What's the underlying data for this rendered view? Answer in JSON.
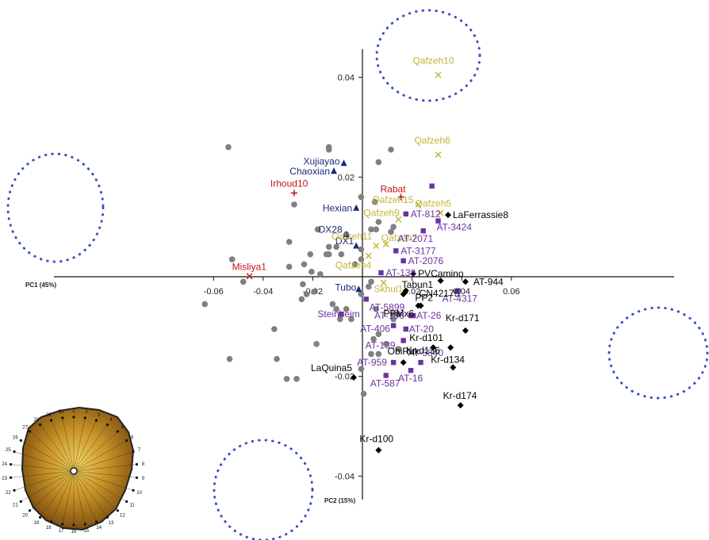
{
  "chart_data": {
    "type": "scatter",
    "xlabel": "PC1 (45%)",
    "ylabel": "PC2 (15%)",
    "xlim": [
      -0.067,
      0.068
    ],
    "ylim": [
      -0.047,
      0.055
    ],
    "x_ticks": [
      -0.06,
      -0.04,
      -0.02,
      0.02,
      0.04,
      0.06
    ],
    "x_tick_labels": [
      "-0.06",
      "-0.04",
      "-0.02",
      "0.02",
      "0.04",
      "0.06"
    ],
    "y_ticks": [
      0.04,
      0.02,
      -0.02,
      -0.04
    ],
    "y_tick_labels": [
      "0.04",
      "0.02",
      "-0.02",
      "-0.04"
    ],
    "grid": false,
    "colors": {
      "grey": "#808080",
      "red": "#c0161a",
      "navy": "#1c2a7a",
      "olive": "#c2b43a",
      "purple": "#6b32a0",
      "black": "#000000",
      "dots": "#3a4fc4"
    },
    "series": [
      {
        "group": "unlabeled-comparative",
        "marker": "circle",
        "color": "#808080",
        "points": [
          {
            "x": -0.054,
            "y": 0.026
          },
          {
            "x": -0.0135,
            "y": 0.0255
          },
          {
            "x": -0.0135,
            "y": 0.026
          },
          {
            "x": 0.0115,
            "y": 0.0255
          },
          {
            "x": 0.0065,
            "y": 0.023
          },
          {
            "x": -0.0275,
            "y": 0.0145
          },
          {
            "x": -0.0005,
            "y": 0.016
          },
          {
            "x": 0.005,
            "y": 0.015
          },
          {
            "x": 0.0065,
            "y": 0.011
          },
          {
            "x": 0.0055,
            "y": 0.0095
          },
          {
            "x": 0.0035,
            "y": 0.0095
          },
          {
            "x": 0.0125,
            "y": 0.01
          },
          {
            "x": -0.018,
            "y": 0.0095
          },
          {
            "x": -0.0065,
            "y": 0.0085
          },
          {
            "x": 0.0115,
            "y": 0.009
          },
          {
            "x": -0.0295,
            "y": 0.007
          },
          {
            "x": -0.0135,
            "y": 0.006
          },
          {
            "x": -0.0105,
            "y": 0.006
          },
          {
            "x": -0.0005,
            "y": 0.0055
          },
          {
            "x": -0.021,
            "y": 0.0045
          },
          {
            "x": -0.0145,
            "y": 0.0045
          },
          {
            "x": -0.0135,
            "y": 0.0045
          },
          {
            "x": -0.0085,
            "y": 0.0045
          },
          {
            "x": -0.0005,
            "y": 0.0035
          },
          {
            "x": -0.0525,
            "y": 0.0035
          },
          {
            "x": -0.003,
            "y": 0.0025
          },
          {
            "x": -0.0235,
            "y": 0.0025
          },
          {
            "x": -0.0295,
            "y": 0.002
          },
          {
            "x": -0.0205,
            "y": 0.001
          },
          {
            "x": -0.017,
            "y": 0.0005
          },
          {
            "x": -0.048,
            "y": -0.001
          },
          {
            "x": -0.024,
            "y": -0.0015
          },
          {
            "x": 0.0035,
            "y": -0.001
          },
          {
            "x": 0.0025,
            "y": -0.002
          },
          {
            "x": -0.0225,
            "y": -0.0035
          },
          {
            "x": -0.0195,
            "y": -0.003
          },
          {
            "x": -0.0005,
            "y": -0.0035
          },
          {
            "x": -0.0635,
            "y": -0.0055
          },
          {
            "x": -0.0245,
            "y": -0.0045
          },
          {
            "x": -0.012,
            "y": -0.0055
          },
          {
            "x": -0.0105,
            "y": -0.0065
          },
          {
            "x": -0.0065,
            "y": -0.0065
          },
          {
            "x": 0.0055,
            "y": -0.0065
          },
          {
            "x": 0.0125,
            "y": -0.0075
          },
          {
            "x": 0.0145,
            "y": -0.0075
          },
          {
            "x": -0.0045,
            "y": -0.0085
          },
          {
            "x": -0.009,
            "y": -0.0085
          },
          {
            "x": 0.0125,
            "y": -0.0085
          },
          {
            "x": -0.0355,
            "y": -0.0105
          },
          {
            "x": 0.0065,
            "y": -0.0115
          },
          {
            "x": 0.0045,
            "y": -0.0125
          },
          {
            "x": 0.0095,
            "y": -0.0135
          },
          {
            "x": -0.0185,
            "y": -0.0135
          },
          {
            "x": 0.0145,
            "y": -0.0145
          },
          {
            "x": -0.0535,
            "y": -0.0165
          },
          {
            "x": -0.0345,
            "y": -0.0165
          },
          {
            "x": 0.0035,
            "y": -0.0155
          },
          {
            "x": 0.0065,
            "y": -0.0155
          },
          {
            "x": -0.0005,
            "y": -0.0185
          },
          {
            "x": -0.0305,
            "y": -0.0205
          },
          {
            "x": -0.0265,
            "y": -0.0205
          },
          {
            "x": 0.0005,
            "y": -0.0235
          }
        ]
      },
      {
        "group": "red-plus",
        "marker": "plus",
        "color": "#c0161a",
        "points": [
          {
            "label": "Irhoud10",
            "x": -0.0275,
            "y": 0.0168
          },
          {
            "label": "Rabat",
            "x": 0.0155,
            "y": 0.016
          }
        ]
      },
      {
        "group": "red-x",
        "marker": "x",
        "color": "#c0161a",
        "points": [
          {
            "label": "Misliya1",
            "x": -0.0455,
            "y": 0.0001
          }
        ]
      },
      {
        "group": "navy-triangle",
        "marker": "triangle",
        "color": "#1c2a7a",
        "points": [
          {
            "label": "Xujiayao",
            "x": -0.0075,
            "y": 0.0228
          },
          {
            "label": "Chaoxian",
            "x": -0.0115,
            "y": 0.0212
          },
          {
            "label": "Hexian",
            "x": -0.0025,
            "y": 0.0138
          },
          {
            "label": "DX28",
            "x": -0.0065,
            "y": 0.0085
          },
          {
            "label": "DX1",
            "x": -0.0025,
            "y": 0.0062
          },
          {
            "label": "Tubo",
            "x": -0.0015,
            "y": -0.0025
          }
        ]
      },
      {
        "group": "olive-x",
        "marker": "x",
        "color": "#c2b43a",
        "points": [
          {
            "label": "Qafzeh10",
            "x": 0.0305,
            "y": 0.0405
          },
          {
            "label": "Qafzeh6",
            "x": 0.0305,
            "y": 0.0245
          },
          {
            "label": "Qafzeh15",
            "x": 0.0225,
            "y": 0.0145
          },
          {
            "label": "Qafzeh5",
            "x": 0.0315,
            "y": 0.0128
          },
          {
            "label": "Qafzeh9",
            "x": 0.0145,
            "y": 0.0115
          },
          {
            "label": "Qafzeh11",
            "x": 0.0055,
            "y": 0.0062
          },
          {
            "label": "Qafzeh7",
            "x": 0.0095,
            "y": 0.0065
          },
          {
            "label": "Qafzeh4",
            "x": 0.0025,
            "y": 0.0042
          },
          {
            "label": "Skhul1",
            "x": 0.0085,
            "y": -0.0012
          }
        ]
      },
      {
        "group": "purple-square",
        "marker": "square",
        "color": "#6b32a0",
        "points": [
          {
            "label": "",
            "x": 0.028,
            "y": 0.0182
          },
          {
            "label": "AT-812",
            "x": 0.0175,
            "y": 0.0126
          },
          {
            "label": "AT-3424",
            "x": 0.0305,
            "y": 0.0112
          },
          {
            "label": "AT-2071",
            "x": 0.0245,
            "y": 0.0092
          },
          {
            "label": "AT-3177",
            "x": 0.0135,
            "y": 0.0052
          },
          {
            "label": "AT-2076",
            "x": 0.0165,
            "y": 0.0032
          },
          {
            "label": "AT-138",
            "x": 0.0075,
            "y": 0.0008
          },
          {
            "label": "AT-4317",
            "x": 0.0385,
            "y": -0.0028
          },
          {
            "label": "Steinheim",
            "x": -0.0085,
            "y": -0.0075
          },
          {
            "label": "AT-5899",
            "x": 0.0015,
            "y": -0.0045
          },
          {
            "label": "AT-196",
            "x": 0.0195,
            "y": -0.0078
          },
          {
            "label": "AT-26",
            "x": 0.0205,
            "y": -0.0078
          },
          {
            "label": "AT-406",
            "x": 0.0125,
            "y": -0.0098
          },
          {
            "label": "AT-20",
            "x": 0.0175,
            "y": -0.0105
          },
          {
            "label": "AT-139",
            "x": 0.0165,
            "y": -0.0128
          },
          {
            "label": "AT-959",
            "x": 0.0125,
            "y": -0.0172
          },
          {
            "label": "AT-5840",
            "x": 0.0235,
            "y": -0.0172
          },
          {
            "label": "AT-587",
            "x": 0.0095,
            "y": -0.0198
          },
          {
            "label": "AT-16",
            "x": 0.0195,
            "y": -0.0188
          }
        ]
      },
      {
        "group": "black-diamond",
        "marker": "diamond",
        "color": "#000000",
        "points": [
          {
            "label": "LaFerrassie8",
            "x": 0.0345,
            "y": 0.0124
          },
          {
            "label": "PVCamino",
            "x": 0.0205,
            "y": 0.0006
          },
          {
            "label": "Tabun1",
            "x": 0.0165,
            "y": -0.0035
          },
          {
            "label": "",
            "x": 0.0175,
            "y": -0.0028
          },
          {
            "label": "CN42175",
            "x": 0.0315,
            "y": -0.0008
          },
          {
            "label": "AT-944",
            "x": 0.0415,
            "y": -0.001
          },
          {
            "label": "PPMx6",
            "x": 0.0235,
            "y": -0.0058
          },
          {
            "label": "PP2",
            "x": 0.0225,
            "y": -0.0058
          },
          {
            "label": "Kr-d171",
            "x": 0.0415,
            "y": -0.0108
          },
          {
            "label": "Kr-d136",
            "x": 0.0355,
            "y": -0.0142
          },
          {
            "label": "Kr-d101",
            "x": 0.0285,
            "y": -0.0142
          },
          {
            "label": "ObiRak",
            "x": 0.0165,
            "y": -0.0172
          },
          {
            "label": "Kr-d134",
            "x": 0.0365,
            "y": -0.0182
          },
          {
            "label": "LaQuina5",
            "x": -0.0035,
            "y": -0.0202
          },
          {
            "label": "Kr-d174",
            "x": 0.0395,
            "y": -0.0258
          },
          {
            "label": "Kr-d100",
            "x": 0.0065,
            "y": -0.0348
          }
        ]
      }
    ]
  },
  "inset": {
    "dial_numbers": [
      "1",
      "2",
      "3",
      "4",
      "5",
      "6",
      "7",
      "8",
      "9",
      "10",
      "11",
      "12",
      "13",
      "14",
      "15",
      "16",
      "17",
      "18",
      "19",
      "20",
      "21",
      "22",
      "23",
      "24",
      "25",
      "26",
      "27",
      "28",
      "29",
      "30"
    ]
  }
}
